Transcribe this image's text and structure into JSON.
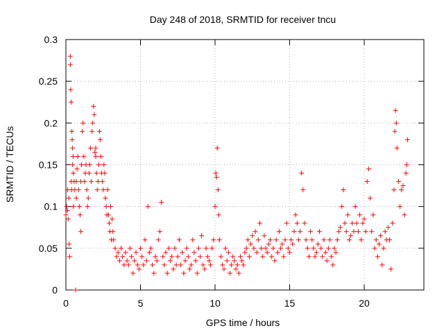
{
  "chart_data": {
    "type": "scatter",
    "title": "Day 248 of 2018, SRMTID for receiver tncu",
    "xlabel": "GPS time / hours",
    "ylabel": "SRMTID / TECUs",
    "xlim": [
      0,
      24
    ],
    "ylim": [
      0,
      0.3
    ],
    "x_ticks": [
      0,
      5,
      10,
      15,
      20
    ],
    "y_ticks": [
      0,
      0.05,
      0.1,
      0.15,
      0.2,
      0.25,
      0.3
    ],
    "x_tick_labels": [
      "0",
      "5",
      "10",
      "15",
      "20"
    ],
    "y_tick_labels": [
      "0",
      "0.05",
      "0.1",
      "0.15",
      "0.2",
      "0.25",
      "0.3"
    ],
    "grid": true,
    "marker": "+",
    "color": "#ff0000",
    "series": [
      {
        "name": "SRMTID",
        "x": [
          0.0,
          0.05,
          0.1,
          0.12,
          0.15,
          0.2,
          0.22,
          0.25,
          0.3,
          0.3,
          0.32,
          0.35,
          0.35,
          0.38,
          0.4,
          0.42,
          0.45,
          0.45,
          0.48,
          0.5,
          0.5,
          0.55,
          0.6,
          0.65,
          0.7,
          0.7,
          0.75,
          0.8,
          0.85,
          0.9,
          0.95,
          1.0,
          1.0,
          1.05,
          1.1,
          1.15,
          1.2,
          1.25,
          1.3,
          1.35,
          1.4,
          1.45,
          1.5,
          1.55,
          1.6,
          1.65,
          1.7,
          1.75,
          1.8,
          1.85,
          1.9,
          1.95,
          2.0,
          2.0,
          2.05,
          2.1,
          2.15,
          2.2,
          2.25,
          2.3,
          2.35,
          2.4,
          2.45,
          2.5,
          2.55,
          2.6,
          2.65,
          2.7,
          2.75,
          2.8,
          2.85,
          2.9,
          2.95,
          3.0,
          3.05,
          3.1,
          3.15,
          3.2,
          3.3,
          3.4,
          3.5,
          3.6,
          3.7,
          3.8,
          3.9,
          4.0,
          4.1,
          4.2,
          4.3,
          4.4,
          4.5,
          4.6,
          4.7,
          4.8,
          4.9,
          5.0,
          5.1,
          5.2,
          5.3,
          5.4,
          5.5,
          5.6,
          5.7,
          5.8,
          5.9,
          6.0,
          6.1,
          6.2,
          6.3,
          6.4,
          6.5,
          6.6,
          6.7,
          6.8,
          6.9,
          7.0,
          7.1,
          7.2,
          7.3,
          7.4,
          7.5,
          7.6,
          7.7,
          7.8,
          7.9,
          8.0,
          8.1,
          8.2,
          8.3,
          8.4,
          8.5,
          8.6,
          8.7,
          8.8,
          8.9,
          9.0,
          9.1,
          9.2,
          9.3,
          9.4,
          9.5,
          9.6,
          9.7,
          9.8,
          9.9,
          10.0,
          10.05,
          10.1,
          10.15,
          10.2,
          10.25,
          10.3,
          10.4,
          10.5,
          10.6,
          10.7,
          10.8,
          10.9,
          11.0,
          11.1,
          11.2,
          11.3,
          11.4,
          11.5,
          11.6,
          11.7,
          11.8,
          11.9,
          12.0,
          12.1,
          12.2,
          12.3,
          12.4,
          12.5,
          12.6,
          12.7,
          12.8,
          12.9,
          13.0,
          13.1,
          13.2,
          13.3,
          13.4,
          13.5,
          13.6,
          13.7,
          13.8,
          13.9,
          14.0,
          14.1,
          14.2,
          14.3,
          14.4,
          14.5,
          14.6,
          14.7,
          14.8,
          14.9,
          15.0,
          15.1,
          15.2,
          15.3,
          15.4,
          15.5,
          15.6,
          15.7,
          15.8,
          15.9,
          16.0,
          16.1,
          16.2,
          16.3,
          16.4,
          16.5,
          16.6,
          16.7,
          16.8,
          16.9,
          17.0,
          17.1,
          17.2,
          17.3,
          17.4,
          17.5,
          17.6,
          17.7,
          17.8,
          17.9,
          18.0,
          18.1,
          18.2,
          18.3,
          18.4,
          18.5,
          18.6,
          18.7,
          18.8,
          18.9,
          19.0,
          19.1,
          19.2,
          19.3,
          19.4,
          19.5,
          19.6,
          19.7,
          19.8,
          19.9,
          20.0,
          20.1,
          20.2,
          20.3,
          20.4,
          20.5,
          20.6,
          20.7,
          20.8,
          20.9,
          21.0,
          21.1,
          21.2,
          21.3,
          21.4,
          21.5,
          21.6,
          21.7,
          21.8,
          21.9,
          22.0,
          22.05,
          22.1,
          22.15,
          22.2,
          22.3,
          22.4,
          22.5,
          22.6,
          22.7,
          22.8,
          22.85,
          22.9
        ],
        "y": [
          0.09,
          0.1,
          0.095,
          0.12,
          0.085,
          0.11,
          0.055,
          0.04,
          0.28,
          0.27,
          0.24,
          0.225,
          0.13,
          0.12,
          0.19,
          0.18,
          0.15,
          0.17,
          0.16,
          0.14,
          0.1,
          0.13,
          0.12,
          0.0,
          0.11,
          0.13,
          0.145,
          0.16,
          0.12,
          0.1,
          0.09,
          0.07,
          0.13,
          0.15,
          0.19,
          0.2,
          0.16,
          0.13,
          0.14,
          0.15,
          0.12,
          0.1,
          0.11,
          0.14,
          0.15,
          0.17,
          0.13,
          0.19,
          0.2,
          0.22,
          0.21,
          0.165,
          0.17,
          0.16,
          0.14,
          0.12,
          0.13,
          0.15,
          0.19,
          0.18,
          0.16,
          0.14,
          0.13,
          0.12,
          0.15,
          0.14,
          0.11,
          0.1,
          0.09,
          0.12,
          0.09,
          0.08,
          0.07,
          0.1,
          0.06,
          0.085,
          0.07,
          0.06,
          0.05,
          0.04,
          0.045,
          0.035,
          0.05,
          0.04,
          0.03,
          0.045,
          0.035,
          0.03,
          0.05,
          0.04,
          0.02,
          0.035,
          0.045,
          0.03,
          0.025,
          0.05,
          0.04,
          0.03,
          0.06,
          0.035,
          0.1,
          0.045,
          0.05,
          0.03,
          0.02,
          0.04,
          0.035,
          0.06,
          0.07,
          0.105,
          0.04,
          0.03,
          0.045,
          0.02,
          0.05,
          0.035,
          0.04,
          0.025,
          0.05,
          0.03,
          0.04,
          0.06,
          0.03,
          0.045,
          0.02,
          0.035,
          0.05,
          0.04,
          0.025,
          0.03,
          0.06,
          0.045,
          0.035,
          0.02,
          0.05,
          0.04,
          0.065,
          0.03,
          0.025,
          0.05,
          0.04,
          0.035,
          0.03,
          0.05,
          0.06,
          0.1,
          0.14,
          0.135,
          0.17,
          0.12,
          0.09,
          0.06,
          0.04,
          0.03,
          0.025,
          0.05,
          0.035,
          0.045,
          0.02,
          0.03,
          0.04,
          0.035,
          0.025,
          0.03,
          0.02,
          0.04,
          0.035,
          0.03,
          0.045,
          0.05,
          0.06,
          0.04,
          0.055,
          0.065,
          0.05,
          0.07,
          0.045,
          0.06,
          0.08,
          0.05,
          0.04,
          0.065,
          0.05,
          0.045,
          0.055,
          0.06,
          0.04,
          0.05,
          0.035,
          0.06,
          0.045,
          0.07,
          0.05,
          0.055,
          0.04,
          0.06,
          0.08,
          0.05,
          0.045,
          0.06,
          0.055,
          0.07,
          0.09,
          0.08,
          0.06,
          0.07,
          0.14,
          0.12,
          0.08,
          0.06,
          0.05,
          0.04,
          0.07,
          0.06,
          0.05,
          0.04,
          0.045,
          0.055,
          0.07,
          0.05,
          0.04,
          0.06,
          0.045,
          0.035,
          0.05,
          0.06,
          0.04,
          0.03,
          0.05,
          0.045,
          0.06,
          0.07,
          0.075,
          0.1,
          0.12,
          0.08,
          0.07,
          0.09,
          0.06,
          0.065,
          0.08,
          0.07,
          0.1,
          0.08,
          0.07,
          0.09,
          0.06,
          0.08,
          0.085,
          0.07,
          0.13,
          0.145,
          0.11,
          0.07,
          0.09,
          0.05,
          0.06,
          0.04,
          0.055,
          0.065,
          0.03,
          0.05,
          0.07,
          0.06,
          0.075,
          0.06,
          0.025,
          0.08,
          0.12,
          0.19,
          0.215,
          0.2,
          0.17,
          0.13,
          0.1,
          0.12,
          0.125,
          0.09,
          0.14,
          0.15,
          0.18
        ]
      }
    ]
  }
}
